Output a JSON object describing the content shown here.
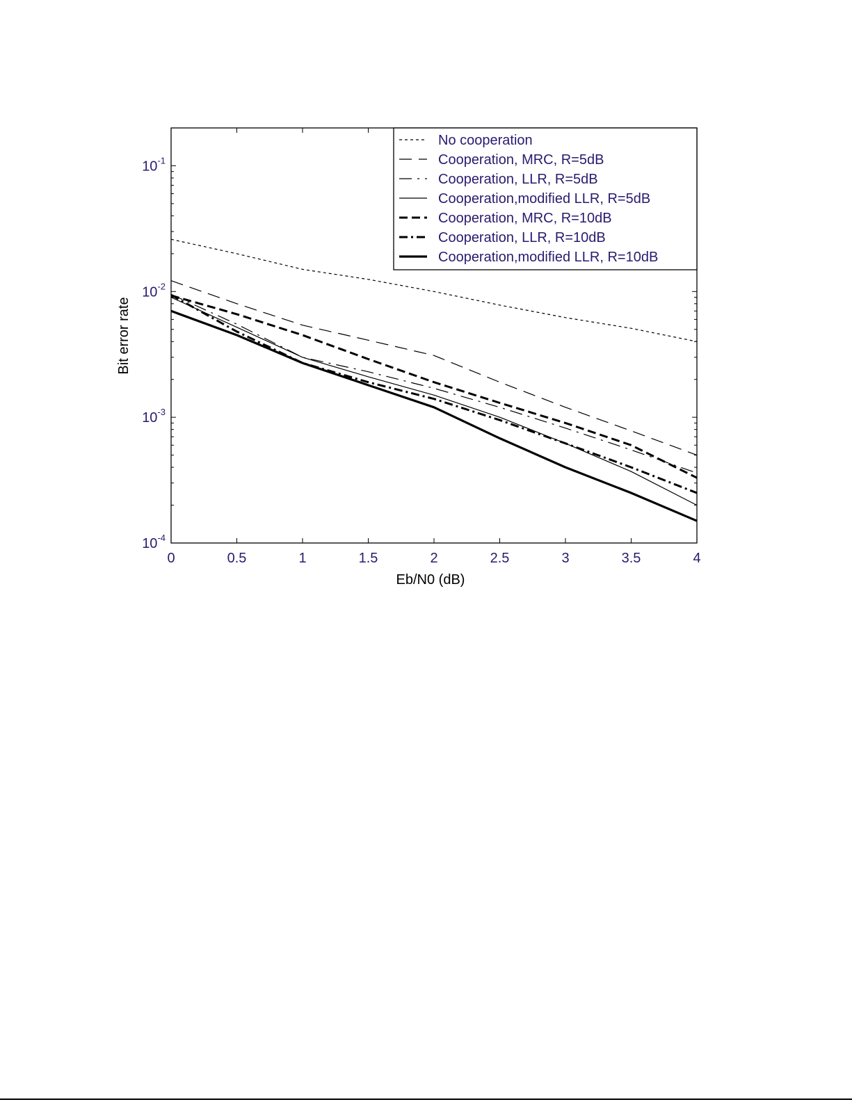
{
  "chart_data": {
    "type": "line",
    "xlabel": "Eb/N0 (dB)",
    "ylabel": "Bit error rate",
    "xlim": [
      0,
      4
    ],
    "ylim": [
      0.0001,
      0.2
    ],
    "y_scale": "log",
    "grid": false,
    "legend_position": "top-right",
    "x_ticks": [
      "0",
      "0.5",
      "1",
      "1.5",
      "2",
      "2.5",
      "3",
      "3.5",
      "4"
    ],
    "y_ticks": [
      {
        "value": 0.1,
        "base": "10",
        "exp": "-1"
      },
      {
        "value": 0.01,
        "base": "10",
        "exp": "-2"
      },
      {
        "value": 0.001,
        "base": "10",
        "exp": "-3"
      },
      {
        "value": 0.0001,
        "base": "10",
        "exp": "-4"
      }
    ],
    "tick_label_color": "#2b1a6e",
    "series": [
      {
        "name": "No cooperation",
        "style": "dotted-thin",
        "x": [
          0,
          0.5,
          1,
          1.5,
          2,
          2.5,
          3,
          3.5,
          4
        ],
        "y": [
          0.026,
          0.02,
          0.015,
          0.0125,
          0.01,
          0.0078,
          0.0062,
          0.0051,
          0.004
        ]
      },
      {
        "name": "Cooperation, MRC, R=5dB",
        "style": "dash-thin",
        "x": [
          0,
          0.5,
          1,
          1.5,
          2,
          2.5,
          3,
          3.5,
          4
        ],
        "y": [
          0.0122,
          0.008,
          0.0054,
          0.0041,
          0.0031,
          0.0019,
          0.0012,
          0.00078,
          0.0005
        ]
      },
      {
        "name": "Cooperation, LLR, R=5dB",
        "style": "dashdot-thin",
        "x": [
          0,
          0.5,
          1,
          1.5,
          2,
          2.5,
          3,
          3.5,
          4
        ],
        "y": [
          0.0095,
          0.0055,
          0.003,
          0.0023,
          0.0017,
          0.0012,
          0.00082,
          0.00055,
          0.00036
        ]
      },
      {
        "name": "Cooperation,modified LLR, R=5dB",
        "style": "solid-thin",
        "x": [
          0,
          0.5,
          1,
          1.5,
          2,
          2.5,
          3,
          3.5,
          4
        ],
        "y": [
          0.009,
          0.0052,
          0.003,
          0.0021,
          0.0015,
          0.001,
          0.00062,
          0.00037,
          0.0002
        ]
      },
      {
        "name": "Cooperation, MRC, R=10dB",
        "style": "dash-thick",
        "x": [
          0,
          0.5,
          1,
          1.5,
          2,
          2.5,
          3,
          3.5,
          4
        ],
        "y": [
          0.0093,
          0.0066,
          0.0045,
          0.0029,
          0.0019,
          0.0013,
          0.0009,
          0.0006,
          0.00033
        ]
      },
      {
        "name": "Cooperation, LLR, R=10dB",
        "style": "dashdot-thick",
        "x": [
          0,
          0.5,
          1,
          1.5,
          2,
          2.5,
          3,
          3.5,
          4
        ],
        "y": [
          0.0094,
          0.0048,
          0.0027,
          0.0019,
          0.0014,
          0.00095,
          0.00062,
          0.0004,
          0.00025
        ]
      },
      {
        "name": "Cooperation,modified LLR, R=10dB",
        "style": "solid-thick",
        "x": [
          0,
          0.5,
          1,
          1.5,
          2,
          2.5,
          3,
          3.5,
          4
        ],
        "y": [
          0.007,
          0.0045,
          0.0027,
          0.0018,
          0.0012,
          0.00068,
          0.0004,
          0.00025,
          0.00015
        ]
      }
    ]
  }
}
